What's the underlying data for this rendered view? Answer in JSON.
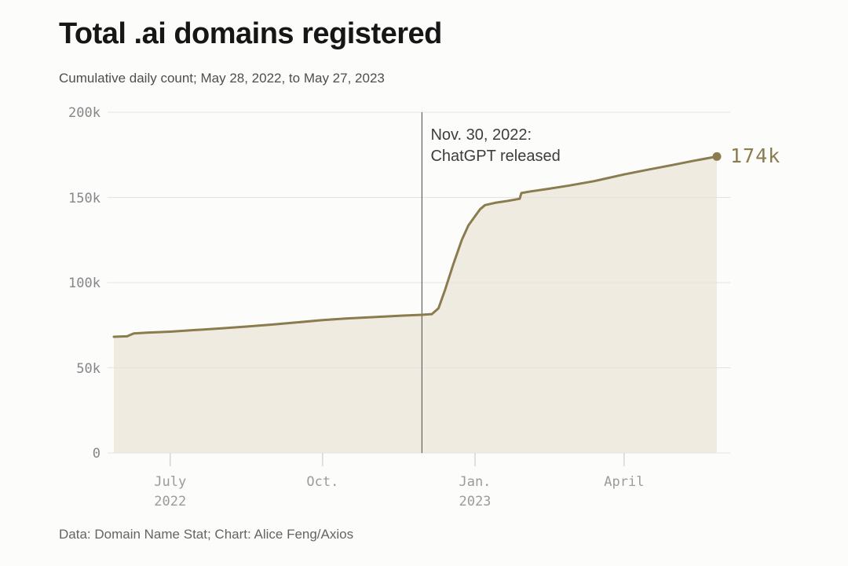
{
  "chart_data": {
    "type": "area",
    "title": "Total .ai domains registered",
    "subtitle": "Cumulative daily count; May 28, 2022, to May 27, 2023",
    "source": "Data: Domain Name Stat; Chart: Alice Feng/Axios",
    "x_format": "day offset from May 28, 2022",
    "x_range_days": [
      0,
      364
    ],
    "ylim": [
      0,
      200
    ],
    "y_unit": "thousands of domains",
    "grid": "horizontal only",
    "legend_position": "none",
    "yticks": [
      {
        "value": 200,
        "label": "200k"
      },
      {
        "value": 150,
        "label": "150k"
      },
      {
        "value": 100,
        "label": "100k"
      },
      {
        "value": 50,
        "label": "50k"
      },
      {
        "value": 0,
        "label": "0"
      }
    ],
    "xticks": [
      {
        "day": 34,
        "line1": "July",
        "line2": "2022"
      },
      {
        "day": 126,
        "line1": "Oct.",
        "line2": ""
      },
      {
        "day": 218,
        "line1": "Jan.",
        "line2": "2023"
      },
      {
        "day": 308,
        "line1": "April",
        "line2": ""
      }
    ],
    "annotation": {
      "day": 186,
      "line1": "Nov. 30, 2022:",
      "line2": "ChatGPT released"
    },
    "end_label": "174k",
    "series": [
      {
        "name": ".ai domains registered (thousands)",
        "points": [
          [
            0,
            68.2
          ],
          [
            8,
            68.5
          ],
          [
            12,
            70.2
          ],
          [
            20,
            70.6
          ],
          [
            34,
            71.2
          ],
          [
            50,
            72.2
          ],
          [
            65,
            73.2
          ],
          [
            80,
            74.2
          ],
          [
            96,
            75.4
          ],
          [
            110,
            76.6
          ],
          [
            126,
            78.0
          ],
          [
            140,
            78.9
          ],
          [
            155,
            79.7
          ],
          [
            170,
            80.4
          ],
          [
            186,
            81.1
          ],
          [
            192,
            81.5
          ],
          [
            196,
            85.0
          ],
          [
            200,
            96.0
          ],
          [
            205,
            111.0
          ],
          [
            210,
            125.0
          ],
          [
            214,
            133.5
          ],
          [
            218,
            139.0
          ],
          [
            221,
            143.0
          ],
          [
            224,
            145.5
          ],
          [
            230,
            146.8
          ],
          [
            238,
            148.0
          ],
          [
            245,
            149.2
          ],
          [
            246,
            152.6
          ],
          [
            252,
            153.6
          ],
          [
            262,
            155.0
          ],
          [
            275,
            157.0
          ],
          [
            290,
            159.6
          ],
          [
            308,
            163.5
          ],
          [
            322,
            166.2
          ],
          [
            336,
            168.8
          ],
          [
            350,
            171.5
          ],
          [
            364,
            174.0
          ]
        ]
      }
    ],
    "colors": {
      "line": "#8a7c4e",
      "fill": "#efebe0",
      "grid": "#e3e3e0",
      "tick": "#d6d6d4",
      "annotation_line": "#636363",
      "annotation_text": "#3d3d3d",
      "title": "#161616",
      "subtitle": "#4e4e4e",
      "footer": "#646464",
      "y_label": "#85868a",
      "x_label": "#9b9b9b",
      "background": "#fcfcfa"
    }
  }
}
